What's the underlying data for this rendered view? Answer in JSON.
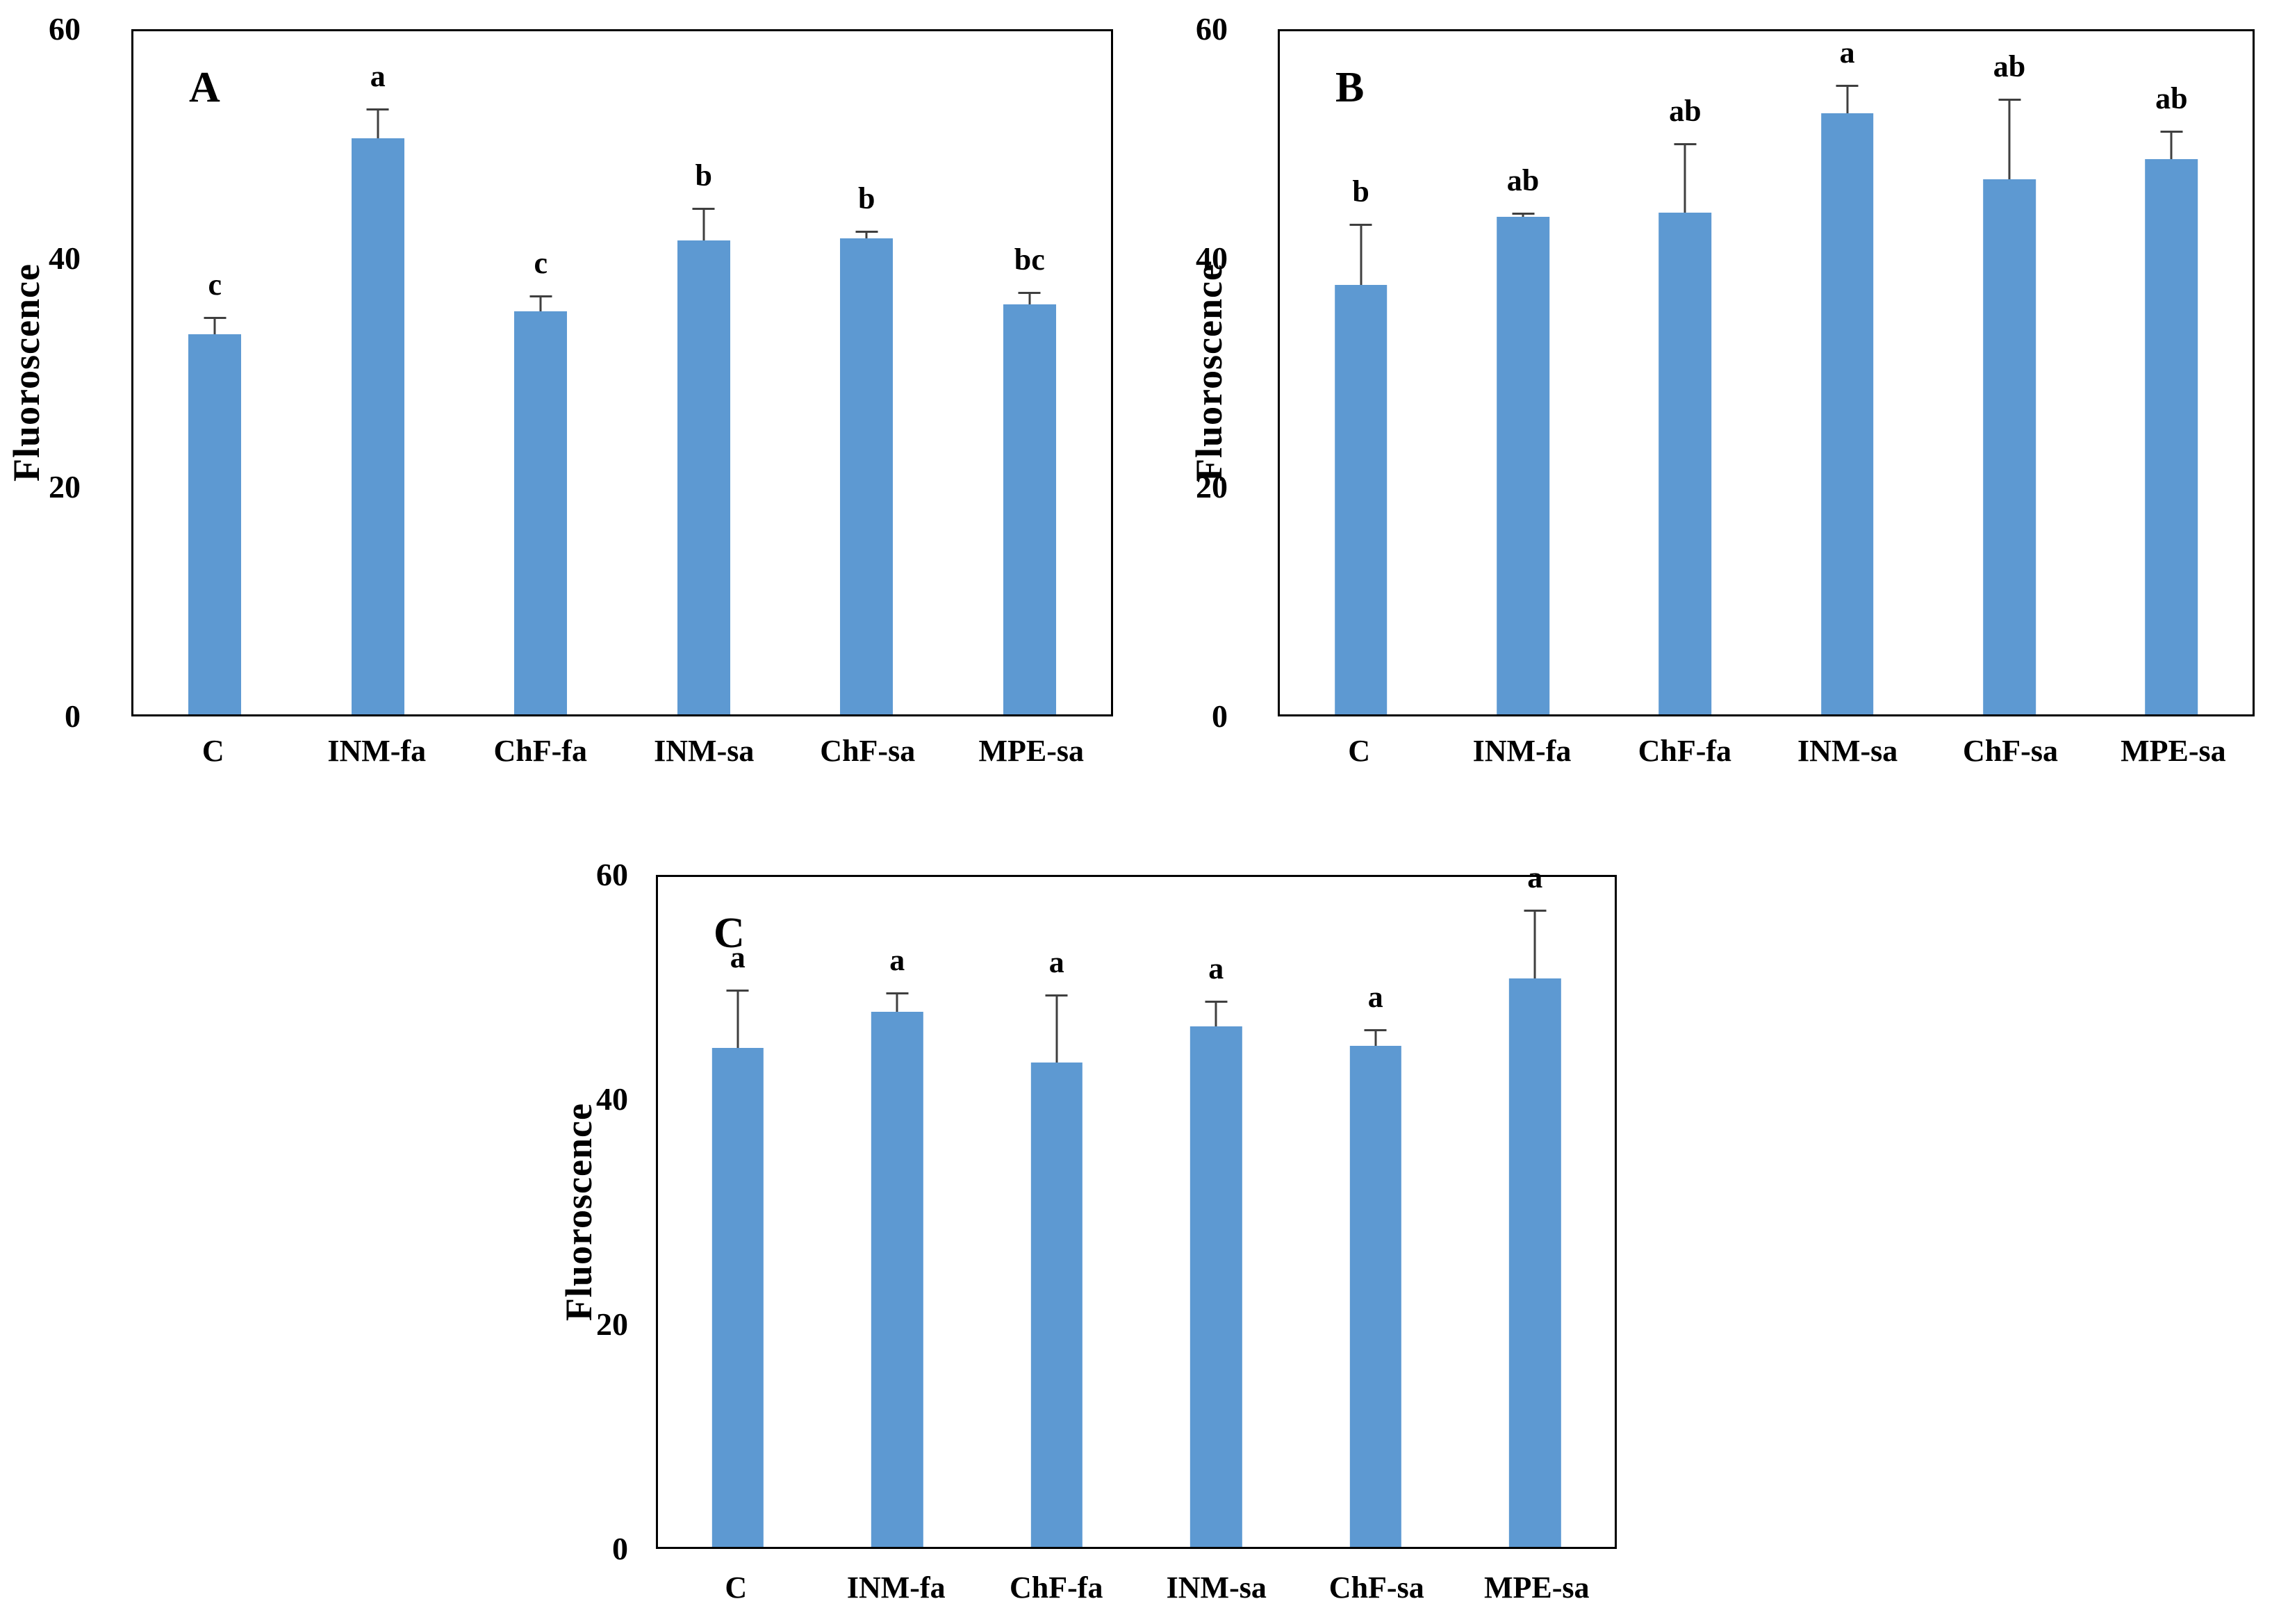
{
  "figure": {
    "background": "#ffffff",
    "bar_color": "#5d99d2",
    "error_bar_color": "#3f3f3f",
    "axis_color": "#000000",
    "text_color": "#000000"
  },
  "chart_data": [
    {
      "type": "bar",
      "panel": "A",
      "title": "",
      "xlabel": "",
      "ylabel": "Fluoroscence",
      "ylim": [
        0,
        60
      ],
      "yticks": [
        0,
        20,
        40,
        60
      ],
      "grid": false,
      "legend": "none",
      "categories": [
        "C",
        "INM-fa",
        "ChF-fa",
        "INM-sa",
        "ChF-sa",
        "MPE-sa"
      ],
      "values": [
        33.4,
        50.6,
        35.4,
        41.6,
        41.8,
        36.0
      ],
      "errors_plus": [
        1.5,
        2.6,
        1.4,
        2.9,
        0.7,
        1.1
      ],
      "sig_letters": [
        "c",
        "a",
        "c",
        "b",
        "b",
        "bc"
      ]
    },
    {
      "type": "bar",
      "panel": "B",
      "title": "",
      "xlabel": "",
      "ylabel": "Fluoroscence",
      "ylim": [
        0,
        60
      ],
      "yticks": [
        0,
        20,
        40,
        60
      ],
      "grid": false,
      "legend": "none",
      "categories": [
        "C",
        "INM-fa",
        "ChF-fa",
        "INM-sa",
        "ChF-sa",
        "MPE-sa"
      ],
      "values": [
        37.7,
        43.7,
        44.1,
        52.8,
        47.0,
        48.8
      ],
      "errors_plus": [
        5.4,
        0.4,
        6.1,
        2.5,
        7.1,
        2.5
      ],
      "sig_letters": [
        "b",
        "ab",
        "ab",
        "a",
        "ab",
        "ab"
      ]
    },
    {
      "type": "bar",
      "panel": "C",
      "title": "",
      "xlabel": "",
      "ylabel": "Fluoroscence",
      "ylim": [
        0,
        60
      ],
      "yticks": [
        0,
        20,
        40,
        60
      ],
      "grid": false,
      "legend": "none",
      "categories": [
        "C",
        "INM-fa",
        "ChF-fa",
        "INM-sa",
        "ChF-sa",
        "MPE-sa"
      ],
      "values": [
        44.7,
        47.9,
        43.4,
        46.6,
        44.9,
        50.9
      ],
      "errors_plus": [
        5.2,
        1.8,
        6.1,
        2.3,
        1.5,
        6.2
      ],
      "sig_letters": [
        "a",
        "a",
        "a",
        "a",
        "a",
        "a"
      ]
    }
  ]
}
